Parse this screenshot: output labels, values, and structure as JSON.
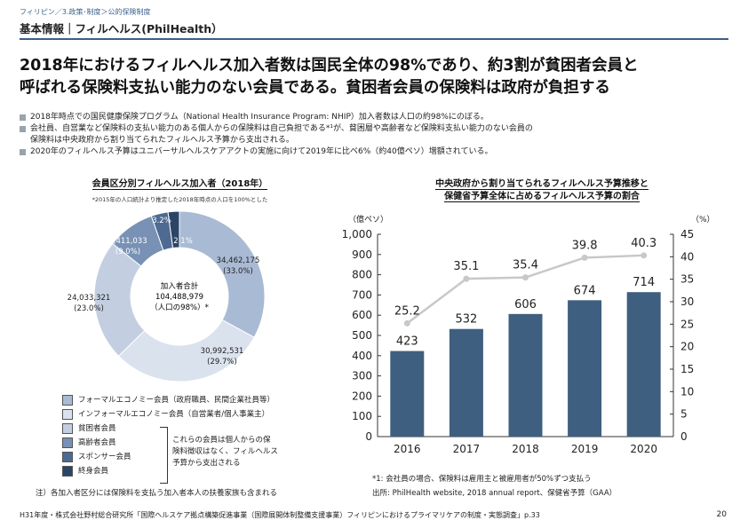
{
  "breadcrumb": "フィリピン／3.政策･制度＞公的保険制度",
  "section_title": "基本情報｜フィルヘルス(PhilHealth）",
  "headline": [
    "2018年におけるフィルヘルス加入者数は国民全体の98%であり、約3割が貧困者会員と",
    "呼ばれる保険料支払い能力のない会員である。貧困者会員の保険料は政府が負担する"
  ],
  "bullets": [
    "2018年時点での国民健康保険プログラム（National Health Insurance Program: NHIP）加入者数は人口の約98%にのぼる。",
    "会社員、自営業など保険料の支払い能力のある個人からの保険料は自己負担である*¹が、貧困層や高齢者など保険料支払い能力のない会員の",
    "保険料は中央政府から割り当てられたフィルヘルス予算から支出される。",
    "2020年のフィルヘルス予算はユニバーサルヘルスケアアクトの実施に向けて2019年に比べ6%（約40億ペソ）増額されている。"
  ],
  "donut": {
    "title": "会員区分別フィルヘルス加入者（2018年）",
    "note": "*2015年の人口統計より推定した2018年時点の人口を100%とした",
    "center": [
      "加入者合計",
      "104,488,979",
      "（人口の98%）*"
    ],
    "segments": [
      {
        "name": "フォーマルエコノミー会員（政府職員、民間企業社員等）",
        "value": 34462175,
        "label": "34,462,175",
        "pct": "(33.0%)",
        "color": "#a9bad4"
      },
      {
        "name": "インフォーマルエコノミー会員（自営業者/個人事業主）",
        "value": 30992531,
        "label": "30,992,531",
        "pct": "(29.7%)",
        "color": "#dae2ee"
      },
      {
        "name": "貧困者会員",
        "value": 24033321,
        "label": "24,033,321",
        "pct": "(23.0%)",
        "color": "#c3cfe1"
      },
      {
        "name": "高齢者会員",
        "value": 9411033,
        "label": "9,411,033",
        "pct": "(9.0%)",
        "color": "#7891b5"
      },
      {
        "name": "スポンサー会員",
        "value": 3343650,
        "label": "",
        "pct": "3.2%",
        "color": "#4d6a92"
      },
      {
        "name": "終身会員",
        "value": 2246269,
        "label": "",
        "pct": "2.1%",
        "color": "#2b4567"
      }
    ]
  },
  "legend_note": [
    "これらの会員は個人からの保",
    "険料徴収はなく、フィルヘルス",
    "予算から支出される"
  ],
  "bar_chart": {
    "title": [
      "中央政府から割り当てられるフィルヘルス予算推移と",
      "保健省予算全体に占めるフィルヘルス予算の割合"
    ],
    "left_unit": "（億ペソ）",
    "right_unit": "（%）",
    "left_ticks": [
      "0",
      "100",
      "200",
      "300",
      "400",
      "500",
      "600",
      "700",
      "800",
      "900",
      "1,000"
    ],
    "right_ticks": [
      "0",
      "5",
      "10",
      "15",
      "20",
      "25",
      "30",
      "35",
      "40",
      "45"
    ],
    "footnote": "*1: 会社員の場合、保険料は雇用主と被雇用者が50%ずつ支払う",
    "source": "出所: PhilHealth website, 2018 annual report、保健省予算（GAA）"
  },
  "chart_data": {
    "type": "bar",
    "categories": [
      "2016",
      "2017",
      "2018",
      "2019",
      "2020"
    ],
    "series": [
      {
        "values": [
          423,
          532,
          606,
          674,
          714
        ],
        "color": "#3f5f80",
        "axis": "left"
      },
      {
        "values": [
          25.2,
          35.1,
          35.4,
          39.8,
          40.3
        ],
        "color": "#c8c8c8",
        "axis": "right",
        "type": "line"
      }
    ],
    "ylim": [
      0,
      1000
    ],
    "y2lim": [
      0,
      45
    ],
    "ylabel": "（億ペソ）",
    "y2label": "（%）"
  },
  "donut_footnote": "注）各加入者区分には保険料を支払う加入者本人の扶養家族も含まれる",
  "footer": "H31年度・株式会社野村総合研究所「国際ヘルスケア拠点構築促進事業（国際展開体制整備支援事業）フィリピンにおけるプライマリケアの制度・実態調査」p.33",
  "page_number": "20"
}
